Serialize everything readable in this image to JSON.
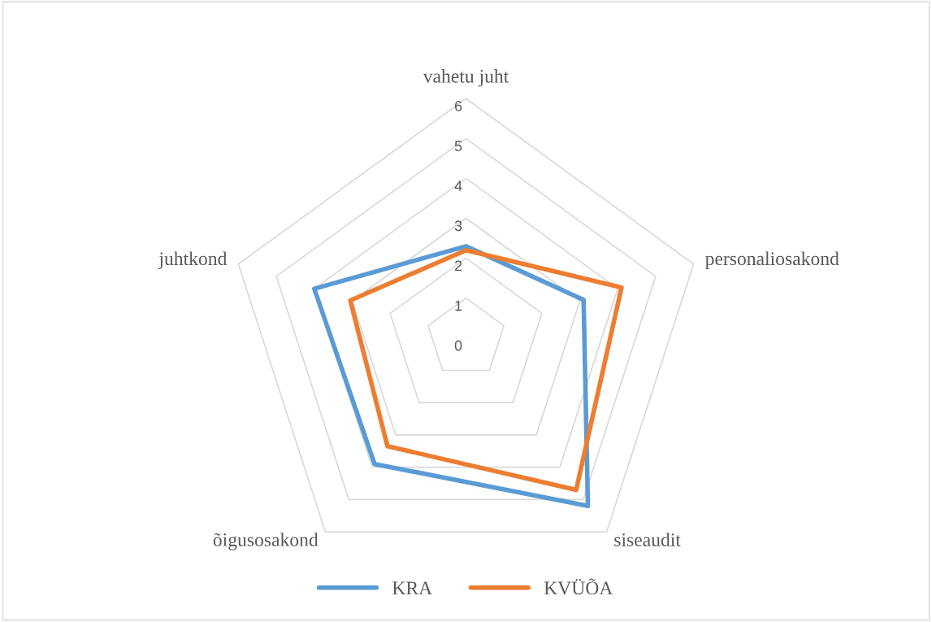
{
  "chart_data": {
    "type": "radar",
    "categories": [
      "vahetu juht",
      "personaliosakond",
      "siseaudit",
      "õigusosakond",
      "juhtkond"
    ],
    "series": [
      {
        "name": "KRA",
        "color": "#5b9bd5",
        "values": [
          2.3,
          3.1,
          5.2,
          3.9,
          4.0
        ]
      },
      {
        "name": "KVÜÕA",
        "color": "#ed7d31",
        "values": [
          2.2,
          4.1,
          4.7,
          3.35,
          3.05
        ]
      }
    ],
    "ylim": [
      0,
      6
    ],
    "yticks": [
      0,
      1,
      2,
      3,
      4,
      5,
      6
    ],
    "grid": true,
    "legend": "bottom",
    "marker": "none",
    "line_style": "solid"
  }
}
